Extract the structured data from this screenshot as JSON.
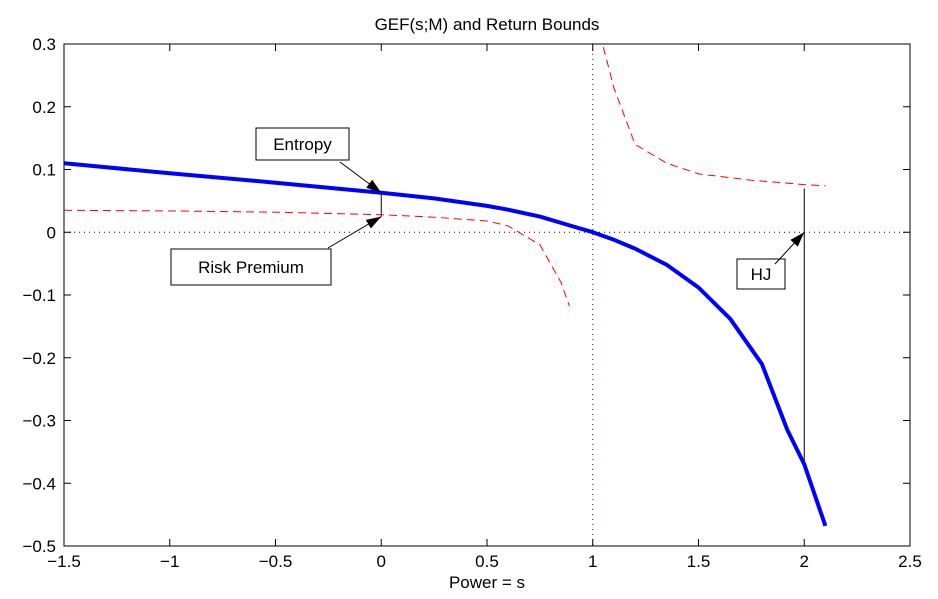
{
  "chart_data": {
    "type": "line",
    "title": "GEF(s;M) and Return Bounds",
    "xlabel": "Power = s",
    "ylabel": "",
    "xlim": [
      -1.5,
      2.5
    ],
    "ylim": [
      -0.5,
      0.3
    ],
    "xticks": [
      -1.5,
      -1,
      -0.5,
      0,
      0.5,
      1,
      1.5,
      2,
      2.5
    ],
    "xtick_labels": [
      "−1.5",
      "−1",
      "−0.5",
      "0",
      "0.5",
      "1",
      "1.5",
      "2",
      "2.5"
    ],
    "yticks": [
      0.3,
      0.2,
      0.1,
      0,
      -0.1,
      -0.2,
      -0.3,
      -0.4,
      -0.5
    ],
    "ytick_labels": [
      "0.3",
      "0.2",
      "0.1",
      "0",
      "−0.1",
      "−0.2",
      "−0.3",
      "−0.4",
      "−0.5"
    ],
    "grid": false,
    "series": [
      {
        "style": "solid-thick",
        "color": "#0000ff",
        "x": [
          -1.5,
          -1.0,
          -0.5,
          0.0,
          0.25,
          0.5,
          0.6,
          0.75,
          0.9,
          1.0,
          1.1,
          1.2,
          1.35,
          1.5,
          1.65,
          1.8,
          1.92,
          2.0,
          2.1
        ],
        "y": [
          0.11,
          0.094,
          0.079,
          0.063,
          0.054,
          0.042,
          0.036,
          0.025,
          0.01,
          0.0,
          -0.012,
          -0.026,
          -0.052,
          -0.088,
          -0.138,
          -0.21,
          -0.315,
          -0.37,
          -0.468
        ]
      },
      {
        "style": "dashed",
        "color": "#ff0000",
        "x": [
          -1.5,
          -1.0,
          -0.5,
          0.0,
          0.25,
          0.5,
          0.6,
          0.65,
          0.75,
          0.85,
          0.89
        ],
        "y": [
          0.035,
          0.034,
          0.032,
          0.028,
          0.024,
          0.018,
          0.01,
          0.0,
          -0.02,
          -0.08,
          -0.118
        ]
      },
      {
        "style": "dashed",
        "color": "#ff0000",
        "x": [
          1.05,
          1.1,
          1.2,
          1.35,
          1.5,
          1.75,
          2.0,
          2.1
        ],
        "y": [
          0.295,
          0.23,
          0.14,
          0.11,
          0.093,
          0.083,
          0.076,
          0.074
        ]
      }
    ],
    "reference_lines": [
      {
        "orientation": "horizontal",
        "value": 0,
        "style": "dotted",
        "color": "#000000"
      },
      {
        "orientation": "vertical",
        "value": 1,
        "style": "dotted",
        "color": "#0000ff"
      }
    ],
    "bound_segments": [
      {
        "x": 0,
        "y0": 0.025,
        "y1": 0.062
      },
      {
        "x": 2.0,
        "y0": -0.37,
        "y1": 0.07
      }
    ],
    "annotations": [
      {
        "text": "Entropy",
        "target": [
          0,
          0.063
        ]
      },
      {
        "text": "Risk Premium",
        "target": [
          0,
          0.025
        ]
      },
      {
        "text": "HJ",
        "target": [
          2.0,
          0.0
        ]
      }
    ]
  }
}
